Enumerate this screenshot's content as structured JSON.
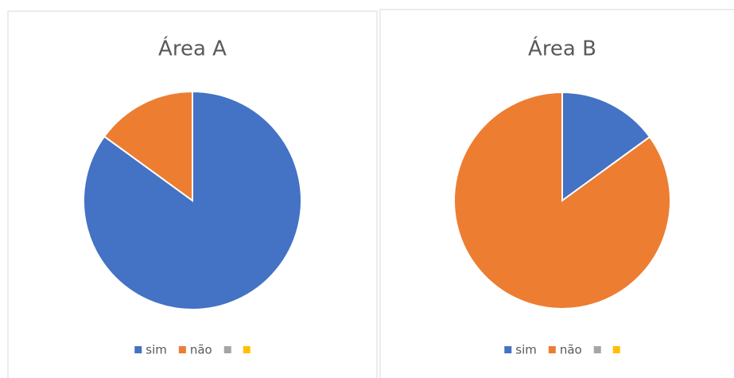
{
  "chart_data": [
    {
      "type": "pie",
      "title": "Área A",
      "categories": [
        "sim",
        "não",
        null,
        null
      ],
      "values": [
        85,
        15,
        0,
        0
      ],
      "colors": [
        "#4472c4",
        "#ed7d31",
        "#a5a5a5",
        "#ffc000"
      ],
      "legend": "bottom"
    },
    {
      "type": "pie",
      "title": "Área B",
      "categories": [
        "sim",
        "não",
        null,
        null
      ],
      "values": [
        15,
        85,
        0,
        0
      ],
      "colors": [
        "#4472c4",
        "#ed7d31",
        "#a5a5a5",
        "#ffc000"
      ],
      "legend": "bottom"
    }
  ]
}
